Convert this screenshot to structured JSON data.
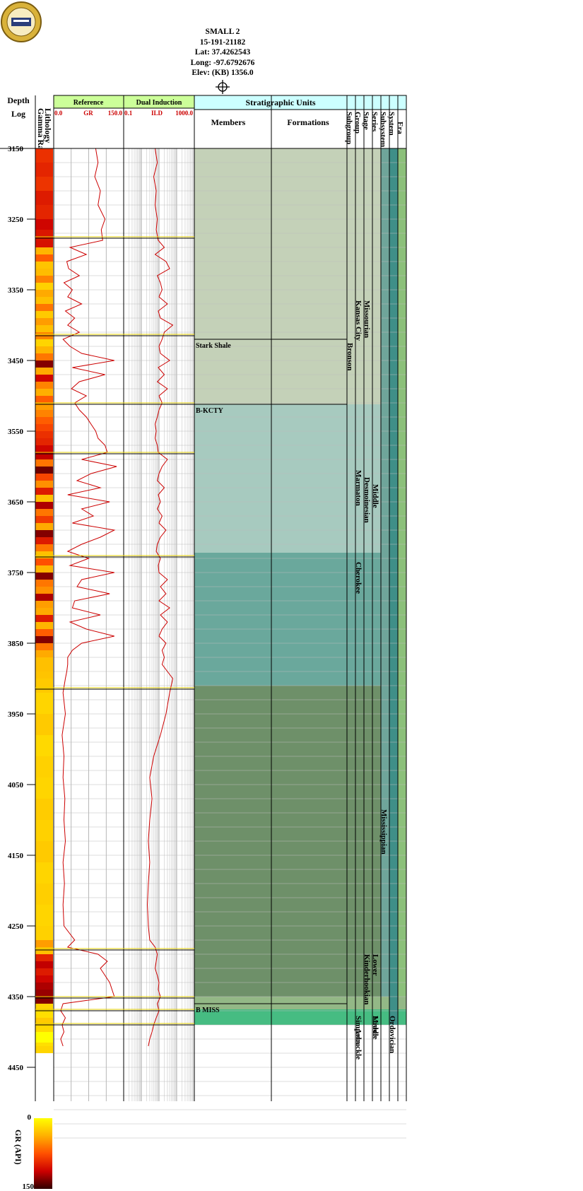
{
  "header": {
    "well_name": "SMALL 2",
    "api": "15-191-21182",
    "lat": "Lat: 37.4262543",
    "long": "Long: -97.6792676",
    "elev": "Elev: (KB) 1356.0"
  },
  "columns": {
    "depth_title": "Depth",
    "log_title": "Log",
    "lithology": "Lithology",
    "gamma_ray": "Gamma Ray",
    "reference": "Reference",
    "ref_min": "0.0",
    "ref_curve": "GR",
    "ref_max": "150.0",
    "dual_induction": "Dual Induction",
    "di_min": "0.1",
    "di_curve": "ILD",
    "di_max": "1000.0",
    "strat_title": "Stratigraphic Units",
    "members": "Members",
    "formations": "Formations",
    "subgroup": "Subgroup",
    "group": "Group",
    "stage": "Stage",
    "series": "Series",
    "subsystem": "Subsystem",
    "system": "System",
    "era": "Era"
  },
  "colorbar": {
    "min": "0",
    "max": "150",
    "label": "GR (API)"
  },
  "chart_data": {
    "type": "line",
    "title": "",
    "depth_range": [
      3150,
      4560
    ],
    "depth_ticks": [
      3150,
      3250,
      3350,
      3450,
      3550,
      3650,
      3750,
      3850,
      3950,
      4050,
      4150,
      4250,
      4350,
      4450
    ],
    "depth_unit": "ft",
    "tracks": [
      {
        "name": "GR",
        "title": "Reference",
        "scale": "linear",
        "xlim": [
          0,
          150
        ],
        "color": "#cc0000"
      },
      {
        "name": "ILD",
        "title": "Dual Induction",
        "scale": "log",
        "xlim": [
          0.1,
          1000
        ],
        "color": "#cc0000"
      }
    ],
    "gr_series": {
      "depth": [
        3150,
        3170,
        3190,
        3210,
        3230,
        3250,
        3265,
        3280,
        3290,
        3300,
        3310,
        3320,
        3330,
        3340,
        3350,
        3360,
        3370,
        3380,
        3390,
        3400,
        3410,
        3420,
        3430,
        3440,
        3450,
        3460,
        3470,
        3480,
        3490,
        3500,
        3510,
        3520,
        3530,
        3540,
        3550,
        3560,
        3570,
        3580,
        3590,
        3600,
        3610,
        3620,
        3630,
        3640,
        3650,
        3660,
        3670,
        3680,
        3690,
        3700,
        3710,
        3720,
        3730,
        3740,
        3750,
        3760,
        3770,
        3780,
        3790,
        3800,
        3810,
        3820,
        3830,
        3840,
        3850,
        3860,
        3870,
        3880,
        3890,
        3900,
        3920,
        3950,
        3980,
        4010,
        4040,
        4070,
        4100,
        4130,
        4160,
        4190,
        4220,
        4250,
        4270,
        4280,
        4290,
        4300,
        4310,
        4320,
        4330,
        4340,
        4350,
        4360,
        4370,
        4380,
        4390,
        4400,
        4410,
        4420
      ],
      "values": [
        90,
        95,
        88,
        100,
        95,
        110,
        102,
        105,
        35,
        70,
        28,
        32,
        55,
        22,
        40,
        30,
        60,
        25,
        45,
        30,
        55,
        20,
        35,
        60,
        130,
        40,
        110,
        55,
        38,
        70,
        45,
        55,
        70,
        80,
        90,
        95,
        110,
        115,
        60,
        135,
        80,
        50,
        100,
        30,
        120,
        60,
        85,
        40,
        130,
        100,
        60,
        30,
        75,
        35,
        130,
        60,
        50,
        120,
        45,
        40,
        100,
        35,
        70,
        130,
        60,
        40,
        30,
        30,
        28,
        25,
        20,
        25,
        18,
        22,
        20,
        24,
        22,
        25,
        20,
        23,
        20,
        22,
        45,
        30,
        95,
        115,
        100,
        110,
        120,
        125,
        130,
        20,
        15,
        25,
        18,
        22,
        15,
        20
      ]
    },
    "ild_series": {
      "depth": [
        3150,
        3170,
        3190,
        3210,
        3230,
        3250,
        3265,
        3280,
        3290,
        3300,
        3310,
        3320,
        3330,
        3340,
        3350,
        3360,
        3370,
        3380,
        3390,
        3400,
        3410,
        3420,
        3430,
        3440,
        3450,
        3460,
        3470,
        3480,
        3490,
        3500,
        3510,
        3520,
        3530,
        3540,
        3550,
        3560,
        3570,
        3580,
        3590,
        3600,
        3610,
        3620,
        3630,
        3640,
        3650,
        3660,
        3670,
        3680,
        3690,
        3700,
        3710,
        3720,
        3730,
        3740,
        3750,
        3760,
        3770,
        3780,
        3790,
        3800,
        3810,
        3820,
        3830,
        3840,
        3850,
        3860,
        3870,
        3880,
        3890,
        3900,
        3920,
        3950,
        3980,
        4010,
        4040,
        4070,
        4100,
        4130,
        4160,
        4190,
        4220,
        4250,
        4270,
        4280,
        4290,
        4300,
        4310,
        4320,
        4330,
        4340,
        4350,
        4360,
        4370,
        4380,
        4390,
        4400,
        4410,
        4420
      ],
      "values": [
        6,
        8,
        5,
        7,
        6,
        8,
        7,
        9,
        20,
        6,
        25,
        40,
        8,
        12,
        15,
        10,
        30,
        9,
        12,
        60,
        20,
        15,
        10,
        12,
        40,
        9,
        20,
        8,
        30,
        10,
        15,
        10,
        8,
        6,
        7,
        6,
        8,
        9,
        30,
        15,
        10,
        8,
        20,
        9,
        12,
        8,
        15,
        10,
        25,
        12,
        8,
        7,
        12,
        9,
        10,
        30,
        12,
        25,
        10,
        40,
        12,
        30,
        15,
        10,
        25,
        15,
        20,
        15,
        30,
        60,
        40,
        25,
        12,
        5,
        3,
        4,
        3,
        2.5,
        3,
        2.5,
        2.2,
        2.5,
        3,
        6,
        8,
        7,
        6,
        8,
        10,
        9,
        12,
        8,
        10,
        7,
        5,
        4,
        3,
        2.5
      ]
    },
    "lithology_colorbar": {
      "variable": "GR (API)",
      "range": [
        0,
        150
      ]
    },
    "tops": [
      {
        "name": "Stark Shale",
        "depth": 3420
      },
      {
        "name": "B-KCTY",
        "depth": 3512
      },
      {
        "name": "B MISS",
        "depth": 4360
      }
    ],
    "units": [
      {
        "label": "Kansas City",
        "column": "group"
      },
      {
        "label": "Missourian",
        "column": "stage"
      },
      {
        "label": "Bronson",
        "column": "subgroup"
      },
      {
        "label": "Marmaton",
        "column": "group"
      },
      {
        "label": "Desmoinesian",
        "column": "stage"
      },
      {
        "label": "Middle",
        "column": "series"
      },
      {
        "label": "Cherokee",
        "column": "group"
      },
      {
        "label": "Mississippian",
        "column": "subsystem"
      },
      {
        "label": "Kinderhookian",
        "column": "stage"
      },
      {
        "label": "Lower",
        "column": "series"
      },
      {
        "label": "Simpson",
        "column": "group"
      },
      {
        "label": "Arbuckle",
        "column": "group"
      },
      {
        "label": "Middle",
        "column": "series"
      },
      {
        "label": "Lower",
        "column": "series"
      },
      {
        "label": "Ordovician",
        "column": "system"
      }
    ]
  }
}
